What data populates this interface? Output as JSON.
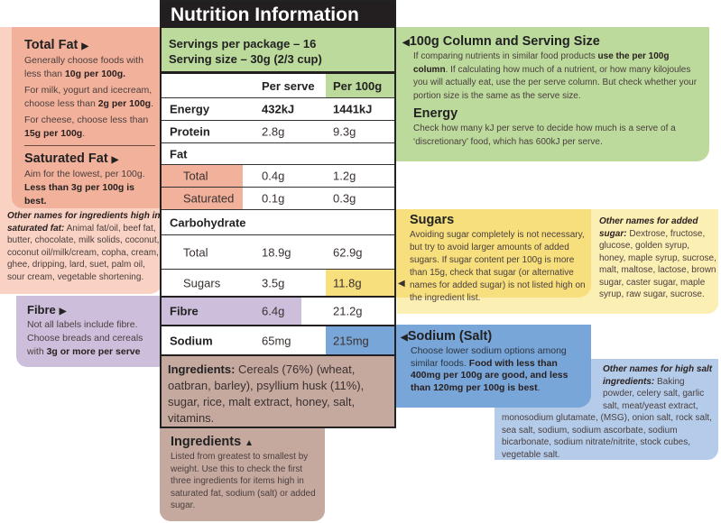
{
  "label": {
    "title": "Nutrition Information",
    "servings_per_package": "Servings per package – 16",
    "serving_size": "Serving size – 30g (2/3 cup)",
    "col_per_serve": "Per serve",
    "col_per_100g": "Per 100g",
    "rows": [
      {
        "name": "Energy",
        "per_serve": "432kJ",
        "per_100g": "1441kJ"
      },
      {
        "name": "Protein",
        "per_serve": "2.8g",
        "per_100g": "9.3g"
      },
      {
        "name": "Fat",
        "per_serve": "",
        "per_100g": ""
      },
      {
        "name": "Total",
        "per_serve": "0.4g",
        "per_100g": "1.2g"
      },
      {
        "name": "Saturated",
        "per_serve": "0.1g",
        "per_100g": "0.3g"
      },
      {
        "name": "Carbohydrate",
        "per_serve": "",
        "per_100g": ""
      },
      {
        "name": "Total",
        "per_serve": "18.9g",
        "per_100g": "62.9g"
      },
      {
        "name": "Sugars",
        "per_serve": "3.5g",
        "per_100g": "11.8g"
      },
      {
        "name": "Fibre",
        "per_serve": "6.4g",
        "per_100g": "21.2g"
      },
      {
        "name": "Sodium",
        "per_serve": "65mg",
        "per_100g": "215mg"
      }
    ],
    "ingredients_label": "Ingredients:",
    "ingredients_text": " Cereals (76%) (wheat, oatbran, barley), psyllium husk (11%), sugar, rice, malt extract, honey, salt, vitamins."
  },
  "total_fat": {
    "title": "Total Fat",
    "p1a": "Generally choose foods with less than ",
    "p1b": "10g per 100g.",
    "p2a": "For milk, yogurt and icecream, choose less than ",
    "p2b": "2g per 100g",
    "p2c": ".",
    "p3a": "For cheese, choose less than ",
    "p3b": "15g per 100g",
    "p3c": "."
  },
  "saturated_fat": {
    "title": "Saturated Fat",
    "p1": "Aim for the lowest, per 100g.",
    "p2": "Less than 3g per 100g is best."
  },
  "sat_other": {
    "label": "Other names for ingredients high in saturated fat:",
    "text": " Animal fat/oil, beef fat, butter, chocolate, milk solids, coconut, coconut oil/milk/cream, copha, cream, ghee, dripping, lard, suet, palm oil, sour cream, vegetable shortening."
  },
  "fibre": {
    "title": "Fibre",
    "p1": "Not all labels include fibre. Choose breads and cereals with ",
    "p2": "3g or more per serve"
  },
  "column": {
    "title": "100g Column and Serving Size",
    "p1a": "If comparing nutrients in similar food products ",
    "p1b": "use the per 100g column",
    "p1c": ".",
    "p2": "If calculating how much of a nutrient, or how many kilojoules you will actually eat, use the per serve column. But check whether your portion size is the same as the serve size."
  },
  "energy": {
    "title": "Energy",
    "p1": "Check how many kJ per serve to decide how much is a serve of a ‘discretionary’ food, which has 600kJ per serve."
  },
  "sugars": {
    "title": "Sugars",
    "p1": "Avoiding sugar completely is not necessary, but try to avoid larger amounts of added sugars. If sugar content per 100g is more than 15g, check that sugar (or alternative names for added sugar) is not listed high on the ingredient list."
  },
  "sugar_other": {
    "label": "Other names for added sugar:",
    "text": " Dextrose, fructose, glucose, golden syrup, honey, maple syrup, sucrose, malt, maltose, lactose, brown sugar, caster sugar, maple syrup, raw sugar, sucrose."
  },
  "sodium": {
    "title": "Sodium (Salt)",
    "p1a": "Choose lower sodium options among similar foods. ",
    "p1b": "Food with less than 400mg per 100g are good, and less than 120mg per 100g is best",
    "p1c": "."
  },
  "salt_other": {
    "label": "Other names for high salt ingredients:",
    "text": "Baking powder, celery salt, garlic salt, meat/yeast extract, monosodium glutamate, (MSG), onion salt, rock salt, sea salt, sodium, sodium ascorbate, sodium bicarbonate, sodium nitrate/nitrite, stock cubes, vegetable salt."
  },
  "ingredients_tip": {
    "title": "Ingredients",
    "p1": "Listed from greatest to smallest by weight. Use this to check the first three ingredients for items high in saturated fat, sodium (salt) or added sugar."
  },
  "colors": {
    "fat": "#f2b19b",
    "fat_light": "#f9d2c3",
    "green": "#bcda9c",
    "yellow": "#f6df7c",
    "yellow_light": "#fcefb4",
    "purple": "#cdbfdb",
    "blue": "#79a6d8",
    "blue_light": "#b4cce9",
    "brown": "#c5a99f"
  }
}
